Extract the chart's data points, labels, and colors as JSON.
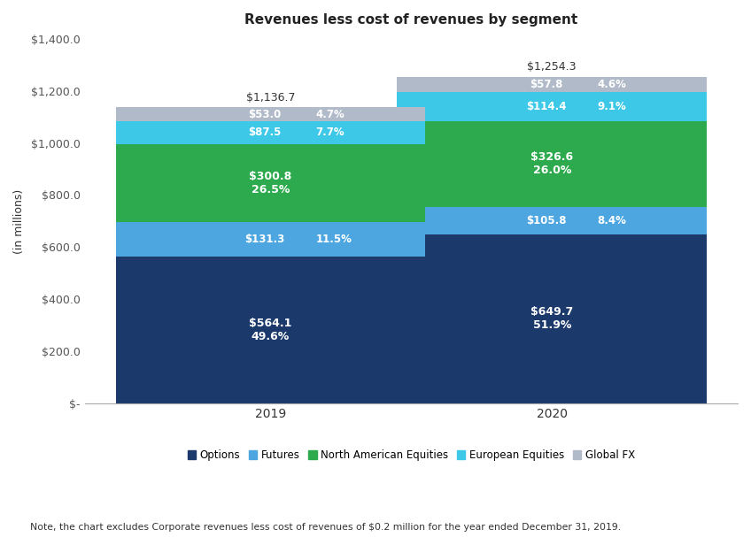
{
  "title": "Revenues less cost of revenues by segment",
  "ylabel": "(in millions)",
  "categories": [
    "2019",
    "2020"
  ],
  "segments": [
    {
      "name": "Options",
      "color": "#1b3a6b",
      "values": [
        564.1,
        649.7
      ],
      "percents": [
        "49.6%",
        "51.9%"
      ],
      "label_style": "two_line_center"
    },
    {
      "name": "Futures",
      "color": "#4da6e0",
      "values": [
        131.3,
        105.8
      ],
      "percents": [
        "11.5%",
        "8.4%"
      ],
      "label_style": "one_line_right"
    },
    {
      "name": "North American Equities",
      "color": "#2eaa4e",
      "values": [
        300.8,
        326.6
      ],
      "percents": [
        "26.5%",
        "26.0%"
      ],
      "label_style": "two_line_center"
    },
    {
      "name": "European Equities",
      "color": "#3ec8e8",
      "values": [
        87.5,
        114.4
      ],
      "percents": [
        "7.7%",
        "9.1%"
      ],
      "label_style": "one_line_right"
    },
    {
      "name": "Global FX",
      "color": "#b0bac8",
      "values": [
        53.0,
        57.8
      ],
      "percents": [
        "4.7%",
        "4.6%"
      ],
      "label_style": "one_line_right"
    }
  ],
  "totals": [
    "$1,136.7",
    "$1,254.3"
  ],
  "ylim": [
    0,
    1400
  ],
  "yticks": [
    0,
    200,
    400,
    600,
    800,
    1000,
    1200,
    1400
  ],
  "ytick_labels": [
    "$-",
    "$200.0",
    "$400.0",
    "$600.0",
    "$800.0",
    "$1,000.0",
    "$1,200.0",
    "$1,400.0"
  ],
  "note": "Note, the chart excludes Corporate revenues less cost of revenues of $0.2 million for the year ended December 31, 2019.",
  "background_color": "#ffffff",
  "bar_width": 0.55
}
